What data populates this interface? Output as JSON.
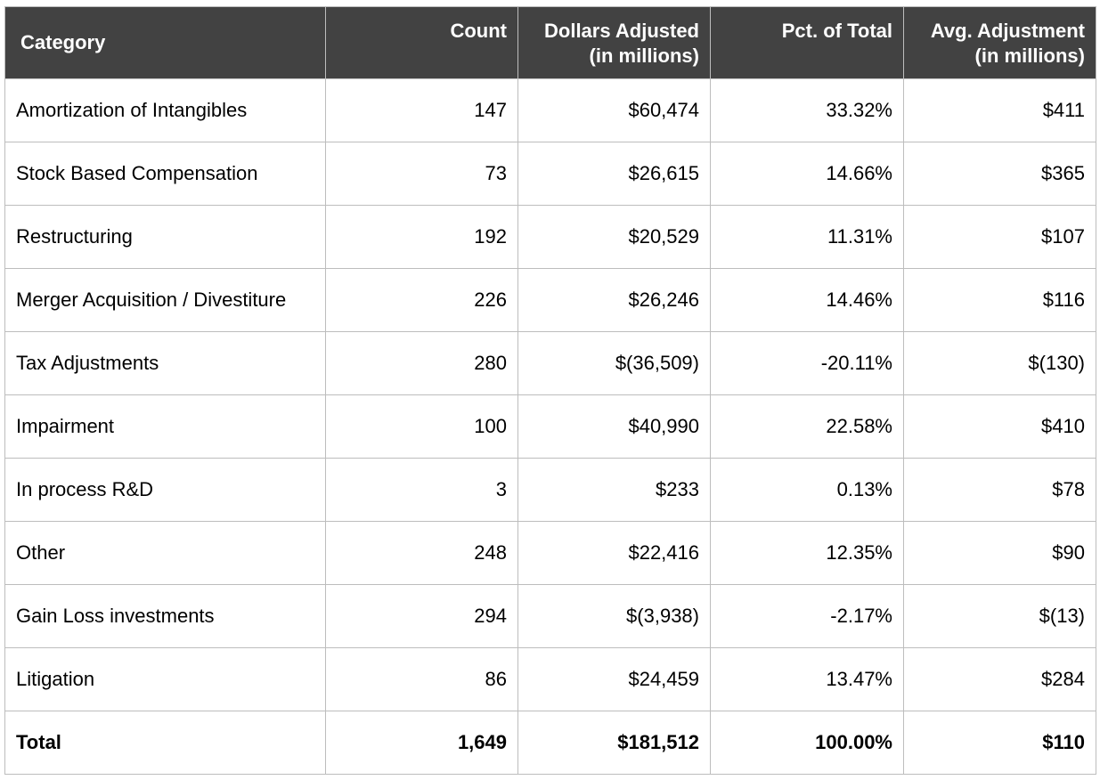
{
  "table": {
    "headers": [
      {
        "line1": "Category",
        "line2": ""
      },
      {
        "line1": "Count",
        "line2": ""
      },
      {
        "line1": "Dollars Adjusted",
        "line2": "(in millions)"
      },
      {
        "line1": "Pct. of Total",
        "line2": ""
      },
      {
        "line1": "Avg. Adjustment",
        "line2": "(in millions)"
      }
    ],
    "rows": [
      [
        "Amortization of Intangibles",
        "147",
        "$60,474",
        "33.32%",
        "$411"
      ],
      [
        "Stock Based Compensation",
        "73",
        "$26,615",
        "14.66%",
        "$365"
      ],
      [
        "Restructuring",
        "192",
        "$20,529",
        "11.31%",
        "$107"
      ],
      [
        "Merger Acquisition / Divestiture",
        "226",
        "$26,246",
        "14.46%",
        "$116"
      ],
      [
        "Tax Adjustments",
        "280",
        "$(36,509)",
        "-20.11%",
        "$(130)"
      ],
      [
        "Impairment",
        "100",
        "$40,990",
        "22.58%",
        "$410"
      ],
      [
        "In process R&D",
        "3",
        "$233",
        "0.13%",
        "$78"
      ],
      [
        "Other",
        "248",
        "$22,416",
        "12.35%",
        "$90"
      ],
      [
        "Gain Loss investments",
        "294",
        "$(3,938)",
        "-2.17%",
        "$(13)"
      ],
      [
        "Litigation",
        "86",
        "$24,459",
        "13.47%",
        "$284"
      ]
    ],
    "total": [
      "Total",
      "1,649",
      "$181,512",
      "100.00%",
      "$110"
    ]
  },
  "colors": {
    "header_bg": "#424242",
    "header_text": "#ffffff",
    "grid": "#bdbdbd"
  }
}
